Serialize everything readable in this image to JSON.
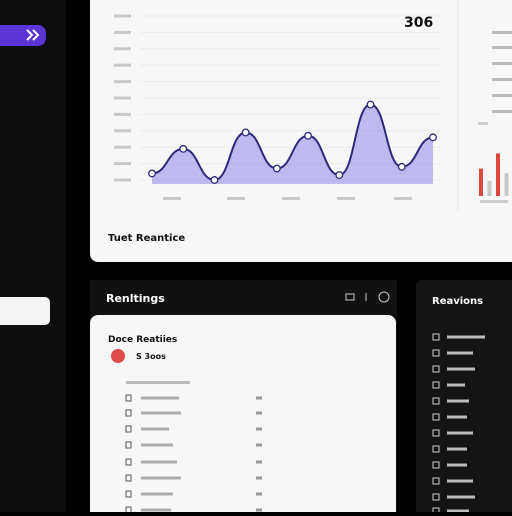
{
  "header": {
    "stat": "306",
    "chart_caption": "Tuet Reantice"
  },
  "chart_data": [
    {
      "type": "line",
      "ylim": [
        0,
        10
      ],
      "yticks": [
        0,
        1,
        2,
        3,
        4,
        5,
        6,
        7,
        8,
        9,
        10
      ],
      "grid": true,
      "color": "#2d2a7a",
      "fill": "#8f86e8",
      "values": [
        0.4,
        1.9,
        0,
        2.9,
        0.7,
        2.7,
        0.3,
        4.6,
        0.8,
        2.6
      ]
    },
    {
      "type": "bar",
      "ylim": [
        0,
        5
      ],
      "values": [
        1.8,
        1,
        2.8,
        1.5
      ],
      "colors": [
        "#d9483b",
        "#c9c9c9",
        "#d9483b",
        "#c9c9c9"
      ]
    }
  ],
  "rankings": {
    "title": "Renltings",
    "card_title": "Doce Reatiies",
    "badge_text": "S 3oos"
  },
  "reactions": {
    "title": "Reavions"
  }
}
